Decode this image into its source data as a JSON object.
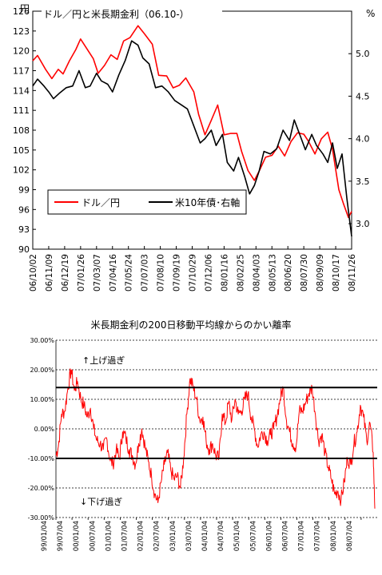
{
  "chart_data": [
    {
      "type": "line",
      "title": "ドル／円と米長期金利（06.10-）",
      "left_unit": "円",
      "right_unit": "%",
      "ylim_left": [
        90,
        126
      ],
      "yticks_left": [
        90,
        93,
        96,
        99,
        102,
        105,
        108,
        111,
        114,
        117,
        120,
        123,
        126
      ],
      "ylim_right": [
        2.7,
        5.5
      ],
      "yticks_right": [
        "3.0",
        "3.5",
        "4.0",
        "4.5",
        "5.0"
      ],
      "yticks_right_values": [
        3.0,
        3.5,
        4.0,
        4.5,
        5.0
      ],
      "x_tick_labels": [
        "06/10/02",
        "06/11/09",
        "06/12/19",
        "07/01/26",
        "07/03/07",
        "07/04/16",
        "07/05/24",
        "07/07/03",
        "07/08/10",
        "07/09/19",
        "07/10/29",
        "07/12/06",
        "08/01/16",
        "08/02/25",
        "08/04/03",
        "08/05/13",
        "08/06/20",
        "08/07/30",
        "08/09/09",
        "08/10/17",
        "08/11/26"
      ],
      "legend_position": "bottom-left",
      "series": [
        {
          "name": "ドル／円",
          "color": "#ff0000",
          "axis": "left",
          "x": [
            0,
            0.3,
            0.8,
            1.2,
            1.6,
            1.9,
            2.3,
            2.7,
            3.0,
            3.4,
            3.8,
            4.1,
            4.5,
            4.9,
            5.3,
            5.7,
            6.1,
            6.6,
            7.0,
            7.5,
            7.9,
            8.4,
            8.8,
            9.2,
            9.6,
            10.1,
            10.4,
            10.8,
            11.2,
            11.6,
            12.0,
            12.4,
            12.8,
            13.1,
            13.5,
            13.9,
            14.2,
            14.6,
            15.0,
            15.4,
            15.8,
            16.2,
            16.6,
            17.0,
            17.3,
            17.7,
            18.1,
            18.5,
            18.8,
            19.2,
            19.5,
            19.8,
            20.0
          ],
          "values": [
            118.5,
            119.3,
            117.2,
            115.8,
            117.2,
            116.5,
            118.5,
            120.2,
            121.8,
            120.3,
            118.8,
            116.6,
            117.8,
            119.4,
            118.7,
            121.5,
            122.0,
            123.8,
            122.6,
            121.0,
            116.3,
            116.2,
            114.4,
            114.8,
            115.9,
            113.8,
            110.4,
            107.3,
            109.5,
            111.8,
            107.3,
            107.5,
            107.5,
            104.8,
            101.9,
            100.4,
            101.8,
            103.9,
            104.2,
            105.6,
            104.1,
            106.3,
            107.6,
            107.4,
            106.3,
            104.4,
            106.7,
            107.7,
            105.1,
            99.0,
            96.8,
            94.8,
            95.7
          ]
        },
        {
          "name": "米10年債･右軸",
          "color": "#000000",
          "axis": "right",
          "x": [
            0,
            0.3,
            0.7,
            1.0,
            1.3,
            1.7,
            2.1,
            2.5,
            2.9,
            3.3,
            3.6,
            4.0,
            4.3,
            4.7,
            5.0,
            5.4,
            5.8,
            6.2,
            6.6,
            6.9,
            7.3,
            7.7,
            8.1,
            8.5,
            8.9,
            9.3,
            9.7,
            10.1,
            10.5,
            10.8,
            11.2,
            11.5,
            11.9,
            12.2,
            12.6,
            12.9,
            13.3,
            13.6,
            13.9,
            14.2,
            14.5,
            14.9,
            15.3,
            15.7,
            16.1,
            16.4,
            16.8,
            17.1,
            17.5,
            17.8,
            18.2,
            18.5,
            18.8,
            19.1,
            19.4,
            19.7,
            20.0
          ],
          "values": [
            4.62,
            4.7,
            4.62,
            4.55,
            4.47,
            4.54,
            4.6,
            4.62,
            4.8,
            4.6,
            4.62,
            4.77,
            4.68,
            4.64,
            4.55,
            4.75,
            4.92,
            5.15,
            5.1,
            4.95,
            4.88,
            4.6,
            4.62,
            4.55,
            4.45,
            4.4,
            4.35,
            4.15,
            3.95,
            4.0,
            4.1,
            3.92,
            4.05,
            3.72,
            3.62,
            3.78,
            3.55,
            3.35,
            3.45,
            3.62,
            3.85,
            3.82,
            3.88,
            4.1,
            3.98,
            4.22,
            4.02,
            3.87,
            4.05,
            3.92,
            3.82,
            3.72,
            3.95,
            3.65,
            3.82,
            3.3,
            2.85
          ]
        }
      ]
    },
    {
      "type": "line",
      "title": "米長期金利の200日移動平均線からのかい離率",
      "ylim": [
        -30,
        30
      ],
      "ytick_values": [
        -30,
        -20,
        -10,
        0,
        10,
        20,
        30
      ],
      "ytick_labels": [
        "-30.00%",
        "-20.00%",
        "-10.00%",
        "0.00%",
        "10.00%",
        "20.00%",
        "30.00%"
      ],
      "threshold_lines": [
        14,
        -10
      ],
      "annotations": [
        "↑上げ過ぎ",
        "↓下げ過ぎ"
      ],
      "x_tick_labels": [
        "99/01/04",
        "99/07/04",
        "00/01/04",
        "00/07/04",
        "01/01/04",
        "01/07/04",
        "02/01/04",
        "02/07/04",
        "03/01/04",
        "03/07/04",
        "04/01/04",
        "04/07/04",
        "05/01/04",
        "05/07/04",
        "06/01/04",
        "06/07/04",
        "07/01/04",
        "07/07/04",
        "08/01/04",
        "08/07/04"
      ],
      "series": [
        {
          "color": "#ff0000",
          "x": [
            0,
            0.15,
            0.35,
            0.55,
            0.75,
            0.95,
            1.15,
            1.35,
            1.55,
            1.75,
            1.95,
            2.15,
            2.35,
            2.55,
            2.75,
            2.95,
            3.15,
            3.35,
            3.55,
            3.75,
            3.95,
            4.15,
            4.35,
            4.55,
            4.75,
            4.95,
            5.15,
            5.35,
            5.55,
            5.75,
            5.95,
            6.15,
            6.35,
            6.55,
            6.75,
            6.95,
            7.15,
            7.35,
            7.55,
            7.75,
            7.95,
            8.15,
            8.35,
            8.55,
            8.75,
            8.95,
            9.15,
            9.35,
            9.55,
            9.75,
            9.95,
            10.15,
            10.35,
            10.55,
            10.75,
            10.95,
            11.15,
            11.35,
            11.55,
            11.75,
            11.95,
            12.15,
            12.35,
            12.55,
            12.75,
            12.95,
            13.15,
            13.35,
            13.55,
            13.75,
            13.95,
            14.15,
            14.35,
            14.55,
            14.75,
            14.95,
            15.15,
            15.35,
            15.55,
            15.75,
            15.95,
            16.15,
            16.35,
            16.55,
            16.75,
            16.95,
            17.15,
            17.35,
            17.55,
            17.75,
            17.95,
            18.15,
            18.35,
            18.55,
            18.75,
            18.95,
            19.15,
            19.35,
            19.55,
            19.75,
            19.85
          ],
          "values": [
            -9,
            -6,
            5,
            6,
            14,
            20,
            13,
            16,
            10,
            8,
            4,
            7,
            0,
            -4,
            -5,
            -7,
            -3,
            -10,
            -12,
            -7,
            -10,
            -1,
            -3,
            -7,
            -9,
            -12,
            -5,
            0,
            -6,
            -11,
            -16,
            -22,
            -25,
            -18,
            -12,
            -8,
            -14,
            -17,
            -16,
            -20,
            -10,
            5,
            17,
            14,
            10,
            3,
            4,
            -4,
            -7,
            -5,
            -9,
            -10,
            5,
            2,
            9,
            3,
            10,
            5,
            6,
            10,
            12,
            4,
            0,
            -6,
            -2,
            -1,
            -4,
            -2,
            0,
            4,
            10,
            14,
            3,
            -1,
            -5,
            -6,
            6,
            6,
            9,
            12,
            14,
            5,
            -4,
            -2,
            -8,
            -13,
            -17,
            -22,
            -21,
            -24,
            -18,
            -10,
            -12,
            -5,
            -1,
            8,
            4,
            -4,
            2,
            -8,
            -27
          ]
        }
      ]
    }
  ]
}
